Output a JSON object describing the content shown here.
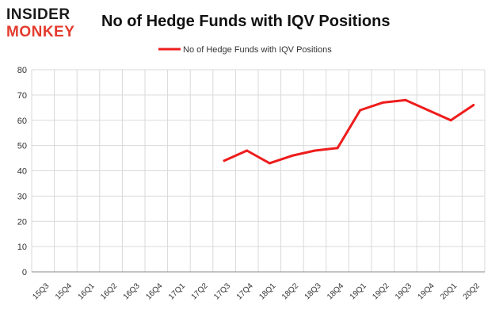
{
  "logo": {
    "line1": "INSIDER",
    "line2": "MONKEY"
  },
  "colors": {
    "series": "#ee1c1c",
    "grid": "#d9d9d9",
    "axis": "#888888",
    "logo_accent": "#e33b2e"
  },
  "chart_data": {
    "type": "line",
    "title": "No of Hedge Funds with IQV Positions",
    "xlabel": "",
    "ylabel": "",
    "ylim": [
      0,
      80
    ],
    "yticks": [
      0,
      10,
      20,
      30,
      40,
      50,
      60,
      70,
      80
    ],
    "grid": true,
    "legend_position": "top-center",
    "categories": [
      "15Q3",
      "15Q4",
      "16Q1",
      "16Q2",
      "16Q3",
      "16Q4",
      "17Q1",
      "17Q2",
      "17Q3",
      "17Q4",
      "18Q1",
      "18Q2",
      "18Q3",
      "18Q4",
      "19Q1",
      "19Q2",
      "19Q3",
      "19Q4",
      "20Q1",
      "20Q2"
    ],
    "series": [
      {
        "name": "No of Hedge Funds with IQV Positions",
        "color": "#ee1c1c",
        "values": [
          null,
          null,
          null,
          null,
          null,
          null,
          null,
          null,
          44,
          48,
          43,
          46,
          48,
          49,
          64,
          67,
          68,
          64,
          60,
          66
        ]
      }
    ]
  }
}
